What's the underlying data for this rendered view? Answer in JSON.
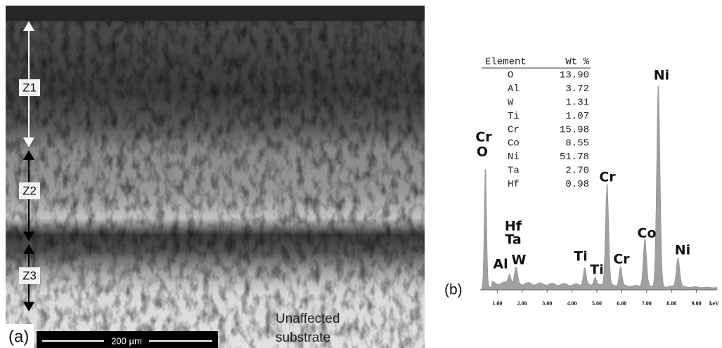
{
  "panel_a": {
    "label": "(a)",
    "zones": [
      "Z1",
      "Z2",
      "Z3"
    ],
    "scale_bar": "200 µm",
    "annotation": [
      "Unaffected",
      "substrate"
    ]
  },
  "panel_b": {
    "label": "(b)",
    "table": {
      "header": [
        "Element",
        "Wt %"
      ],
      "rows": [
        [
          "O",
          "13.90"
        ],
        [
          "Al",
          "3.72"
        ],
        [
          "W",
          "1.31"
        ],
        [
          "Ti",
          "1.07"
        ],
        [
          "Cr",
          "15.98"
        ],
        [
          "Co",
          "8.55"
        ],
        [
          "Ni",
          "51.78"
        ],
        [
          "Ta",
          "2.70"
        ],
        [
          "Hf",
          "0.98"
        ]
      ]
    },
    "peak_labels": [
      "Cr",
      "O",
      "Hf",
      "Ta",
      "Al",
      "W",
      "Ti",
      "Ti",
      "Cr",
      "Cr",
      "Co",
      "Ni",
      "Ni"
    ],
    "x_tick_labels": [
      "1.00",
      "2.00",
      "3.00",
      "4.00",
      "5.00",
      "6.00",
      "7.00",
      "8.00",
      "9.00"
    ],
    "x_unit": "keV"
  }
}
